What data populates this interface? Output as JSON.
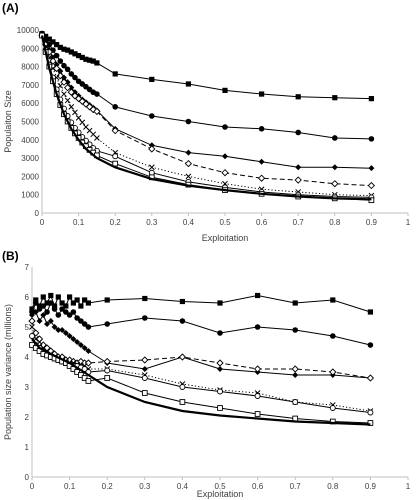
{
  "chart_data": [
    {
      "type": "line",
      "panel_label": "(A)",
      "xlabel": "Exploitation",
      "ylabel": "Populaiton Size",
      "xlim": [
        0,
        1
      ],
      "ylim": [
        0,
        10000
      ],
      "xticks": [
        "0",
        "0.1",
        "0.2",
        "0.3",
        "0.4",
        "0.5",
        "0.6",
        "0.7",
        "0.8",
        "0.9",
        "1"
      ],
      "yticks": [
        "0",
        "1000",
        "2000",
        "3000",
        "4000",
        "5000",
        "6000",
        "7000",
        "8000",
        "9000",
        "10000"
      ],
      "grid": false,
      "legend": "none",
      "series": [
        {
          "marker": "square",
          "line": "solid",
          "x": [
            0,
            0.01,
            0.02,
            0.03,
            0.04,
            0.05,
            0.06,
            0.07,
            0.08,
            0.09,
            0.1,
            0.11,
            0.12,
            0.13,
            0.14,
            0.15,
            0.2,
            0.3,
            0.4,
            0.5,
            0.6,
            0.7,
            0.8,
            0.9
          ],
          "y": [
            9800,
            9650,
            9500,
            9350,
            9200,
            9050,
            8950,
            8900,
            8800,
            8700,
            8600,
            8500,
            8400,
            8350,
            8300,
            8200,
            7600,
            7300,
            7050,
            6700,
            6500,
            6350,
            6300,
            6250
          ]
        },
        {
          "marker": "circle",
          "line": "solid",
          "x": [
            0,
            0.01,
            0.02,
            0.03,
            0.04,
            0.05,
            0.06,
            0.07,
            0.08,
            0.09,
            0.1,
            0.11,
            0.12,
            0.13,
            0.14,
            0.15,
            0.2,
            0.3,
            0.4,
            0.5,
            0.6,
            0.7,
            0.8,
            0.9
          ],
          "y": [
            9800,
            9500,
            9200,
            8900,
            8600,
            8300,
            8050,
            7850,
            7600,
            7400,
            7200,
            7050,
            6900,
            6750,
            6600,
            6500,
            5800,
            5300,
            5000,
            4700,
            4600,
            4400,
            4100,
            4050
          ]
        },
        {
          "marker": "diamond",
          "line": "solid",
          "x": [
            0,
            0.01,
            0.02,
            0.03,
            0.04,
            0.05,
            0.06,
            0.07,
            0.08,
            0.09,
            0.1,
            0.11,
            0.12,
            0.13,
            0.14,
            0.15,
            0.2,
            0.3,
            0.4,
            0.5,
            0.6,
            0.7,
            0.8,
            0.9
          ],
          "y": [
            9800,
            9300,
            8900,
            8500,
            8100,
            7750,
            7400,
            7150,
            6850,
            6600,
            6400,
            6200,
            6050,
            5900,
            5750,
            5600,
            4600,
            3700,
            3300,
            3100,
            2800,
            2500,
            2500,
            2450
          ]
        },
        {
          "marker": "open-diamond",
          "line": "dashed",
          "x": [
            0,
            0.01,
            0.02,
            0.03,
            0.04,
            0.05,
            0.06,
            0.07,
            0.08,
            0.09,
            0.1,
            0.11,
            0.12,
            0.13,
            0.14,
            0.15,
            0.2,
            0.3,
            0.4,
            0.5,
            0.6,
            0.7,
            0.8,
            0.9
          ],
          "y": [
            9700,
            9200,
            8800,
            8300,
            7900,
            7500,
            7150,
            6850,
            6600,
            6400,
            6250,
            6100,
            5950,
            5800,
            5650,
            5550,
            4500,
            3500,
            2700,
            2200,
            1900,
            1800,
            1600,
            1500
          ]
        },
        {
          "marker": "x",
          "line": "dotted",
          "x": [
            0,
            0.01,
            0.02,
            0.03,
            0.04,
            0.05,
            0.06,
            0.07,
            0.08,
            0.09,
            0.1,
            0.11,
            0.12,
            0.13,
            0.14,
            0.15,
            0.2,
            0.3,
            0.4,
            0.5,
            0.6,
            0.7,
            0.8,
            0.9
          ],
          "y": [
            9700,
            9100,
            8500,
            7900,
            7400,
            6950,
            6500,
            6150,
            5800,
            5500,
            5200,
            4950,
            4700,
            4500,
            4300,
            4100,
            3300,
            2500,
            2000,
            1600,
            1300,
            1150,
            1000,
            950
          ]
        },
        {
          "marker": "open-circle",
          "line": "solid",
          "x": [
            0,
            0.01,
            0.02,
            0.03,
            0.04,
            0.05,
            0.06,
            0.07,
            0.08,
            0.09,
            0.1,
            0.11,
            0.12,
            0.13,
            0.14,
            0.15,
            0.2,
            0.3,
            0.4,
            0.5,
            0.6,
            0.7,
            0.8,
            0.9
          ],
          "y": [
            9700,
            8900,
            8100,
            7400,
            6750,
            6200,
            5700,
            5300,
            4950,
            4650,
            4400,
            4150,
            3950,
            3750,
            3550,
            3400,
            3100,
            2200,
            1700,
            1400,
            1150,
            1000,
            900,
            850
          ]
        },
        {
          "marker": "open-square",
          "line": "solid",
          "x": [
            0,
            0.01,
            0.02,
            0.03,
            0.04,
            0.05,
            0.06,
            0.07,
            0.08,
            0.09,
            0.1,
            0.11,
            0.12,
            0.13,
            0.14,
            0.15,
            0.2,
            0.3,
            0.4,
            0.5,
            0.6,
            0.7,
            0.8,
            0.9
          ],
          "y": [
            9700,
            8800,
            8000,
            7200,
            6500,
            5900,
            5400,
            5000,
            4650,
            4350,
            4100,
            3850,
            3650,
            3450,
            3300,
            3150,
            2700,
            1950,
            1550,
            1250,
            1050,
            900,
            800,
            700
          ]
        },
        {
          "marker": "none",
          "line": "solid-thick",
          "x": [
            0,
            0.02,
            0.04,
            0.06,
            0.08,
            0.1,
            0.12,
            0.15,
            0.2,
            0.3,
            0.4,
            0.5,
            0.6,
            0.7,
            0.8,
            0.9
          ],
          "y": [
            9700,
            7900,
            6500,
            5400,
            4600,
            4000,
            3500,
            3000,
            2500,
            1850,
            1500,
            1250,
            1050,
            900,
            800,
            750
          ]
        }
      ]
    },
    {
      "type": "line",
      "panel_label": "(B)",
      "xlabel": "Exploitation",
      "ylabel": "Population size variance (millions)",
      "xlim": [
        0,
        1
      ],
      "ylim": [
        0,
        7
      ],
      "xticks": [
        "0",
        "0.1",
        "0.2",
        "0.3",
        "0.4",
        "0.5",
        "0.6",
        "0.7",
        "0.8",
        "0.9",
        "1"
      ],
      "yticks": [
        "0",
        "1",
        "2",
        "3",
        "4",
        "5",
        "6",
        "7"
      ],
      "grid": false,
      "legend": "none",
      "series": [
        {
          "marker": "square",
          "line": "solid",
          "x": [
            0,
            0.01,
            0.02,
            0.03,
            0.04,
            0.05,
            0.06,
            0.07,
            0.08,
            0.09,
            0.1,
            0.11,
            0.12,
            0.13,
            0.14,
            0.15,
            0.2,
            0.3,
            0.4,
            0.5,
            0.6,
            0.7,
            0.8,
            0.9
          ],
          "y": [
            5.6,
            5.9,
            5.7,
            6.0,
            5.8,
            6.05,
            5.7,
            6.0,
            5.8,
            5.7,
            6.0,
            5.8,
            5.9,
            5.7,
            5.9,
            5.8,
            5.9,
            5.95,
            5.85,
            5.8,
            6.05,
            5.8,
            5.9,
            5.5
          ]
        },
        {
          "marker": "circle",
          "line": "solid",
          "x": [
            0,
            0.01,
            0.02,
            0.03,
            0.04,
            0.05,
            0.06,
            0.07,
            0.08,
            0.09,
            0.1,
            0.11,
            0.12,
            0.13,
            0.14,
            0.15,
            0.2,
            0.3,
            0.4,
            0.5,
            0.6,
            0.7,
            0.8,
            0.9
          ],
          "y": [
            5.5,
            5.8,
            5.6,
            5.7,
            5.5,
            5.8,
            5.6,
            5.4,
            5.6,
            5.5,
            5.4,
            5.5,
            5.3,
            5.2,
            5.1,
            5.0,
            5.1,
            5.3,
            5.2,
            4.8,
            5.0,
            4.9,
            4.7,
            4.4
          ]
        },
        {
          "marker": "diamond",
          "line": "solid",
          "x": [
            0,
            0.01,
            0.02,
            0.03,
            0.04,
            0.05,
            0.06,
            0.07,
            0.08,
            0.09,
            0.1,
            0.11,
            0.12,
            0.13,
            0.14,
            0.15,
            0.2,
            0.3,
            0.4,
            0.5,
            0.6,
            0.7,
            0.8,
            0.9
          ],
          "y": [
            5.4,
            5.5,
            5.2,
            5.4,
            5.1,
            5.2,
            5.0,
            4.9,
            4.9,
            4.8,
            4.7,
            4.6,
            4.5,
            4.4,
            4.3,
            4.2,
            3.8,
            3.6,
            4.0,
            3.6,
            3.5,
            3.4,
            3.4,
            3.3
          ]
        },
        {
          "marker": "open-diamond",
          "line": "dashed",
          "x": [
            0,
            0.01,
            0.02,
            0.03,
            0.04,
            0.05,
            0.06,
            0.07,
            0.08,
            0.09,
            0.1,
            0.11,
            0.12,
            0.13,
            0.14,
            0.15,
            0.2,
            0.3,
            0.4,
            0.5,
            0.6,
            0.7,
            0.8,
            0.9
          ],
          "y": [
            5.2,
            4.8,
            4.6,
            4.4,
            4.3,
            4.2,
            4.1,
            4.0,
            4.0,
            3.9,
            3.9,
            3.85,
            3.8,
            3.85,
            3.8,
            3.8,
            3.85,
            3.9,
            4.0,
            3.8,
            3.6,
            3.6,
            3.5,
            3.3
          ]
        },
        {
          "marker": "x",
          "line": "dotted",
          "x": [
            0,
            0.01,
            0.02,
            0.03,
            0.04,
            0.05,
            0.06,
            0.07,
            0.08,
            0.09,
            0.1,
            0.11,
            0.12,
            0.13,
            0.14,
            0.15,
            0.2,
            0.3,
            0.4,
            0.5,
            0.6,
            0.7,
            0.8,
            0.9
          ],
          "y": [
            5.0,
            4.6,
            4.5,
            4.3,
            4.2,
            4.1,
            4.0,
            3.95,
            3.9,
            3.85,
            3.8,
            3.8,
            3.75,
            3.7,
            3.7,
            3.6,
            3.6,
            3.4,
            3.1,
            2.9,
            2.8,
            2.5,
            2.4,
            2.2
          ]
        },
        {
          "marker": "open-circle",
          "line": "solid",
          "x": [
            0,
            0.01,
            0.02,
            0.03,
            0.04,
            0.05,
            0.06,
            0.07,
            0.08,
            0.09,
            0.1,
            0.11,
            0.12,
            0.13,
            0.14,
            0.15,
            0.2,
            0.3,
            0.4,
            0.5,
            0.6,
            0.7,
            0.8,
            0.9
          ],
          "y": [
            4.7,
            4.4,
            4.3,
            4.2,
            4.1,
            4.0,
            3.95,
            3.9,
            3.85,
            3.8,
            3.75,
            3.7,
            3.7,
            3.65,
            3.6,
            3.5,
            3.55,
            3.3,
            3.0,
            2.85,
            2.7,
            2.5,
            2.3,
            2.15
          ]
        },
        {
          "marker": "open-square",
          "line": "solid",
          "x": [
            0,
            0.01,
            0.02,
            0.03,
            0.04,
            0.05,
            0.06,
            0.07,
            0.08,
            0.09,
            0.1,
            0.11,
            0.12,
            0.13,
            0.14,
            0.15,
            0.2,
            0.3,
            0.4,
            0.5,
            0.6,
            0.7,
            0.8,
            0.9
          ],
          "y": [
            4.4,
            4.3,
            4.2,
            4.1,
            4.05,
            4.0,
            3.95,
            3.9,
            3.85,
            3.8,
            3.7,
            3.6,
            3.5,
            3.4,
            3.3,
            3.2,
            3.3,
            2.8,
            2.5,
            2.3,
            2.1,
            1.95,
            1.85,
            1.8
          ]
        },
        {
          "marker": "none",
          "line": "solid-thick",
          "x": [
            0,
            0.02,
            0.05,
            0.1,
            0.15,
            0.2,
            0.3,
            0.4,
            0.5,
            0.6,
            0.7,
            0.8,
            0.9
          ],
          "y": [
            4.6,
            4.3,
            4.1,
            3.8,
            3.4,
            3.0,
            2.5,
            2.2,
            2.05,
            1.95,
            1.85,
            1.8,
            1.75
          ]
        }
      ]
    }
  ]
}
